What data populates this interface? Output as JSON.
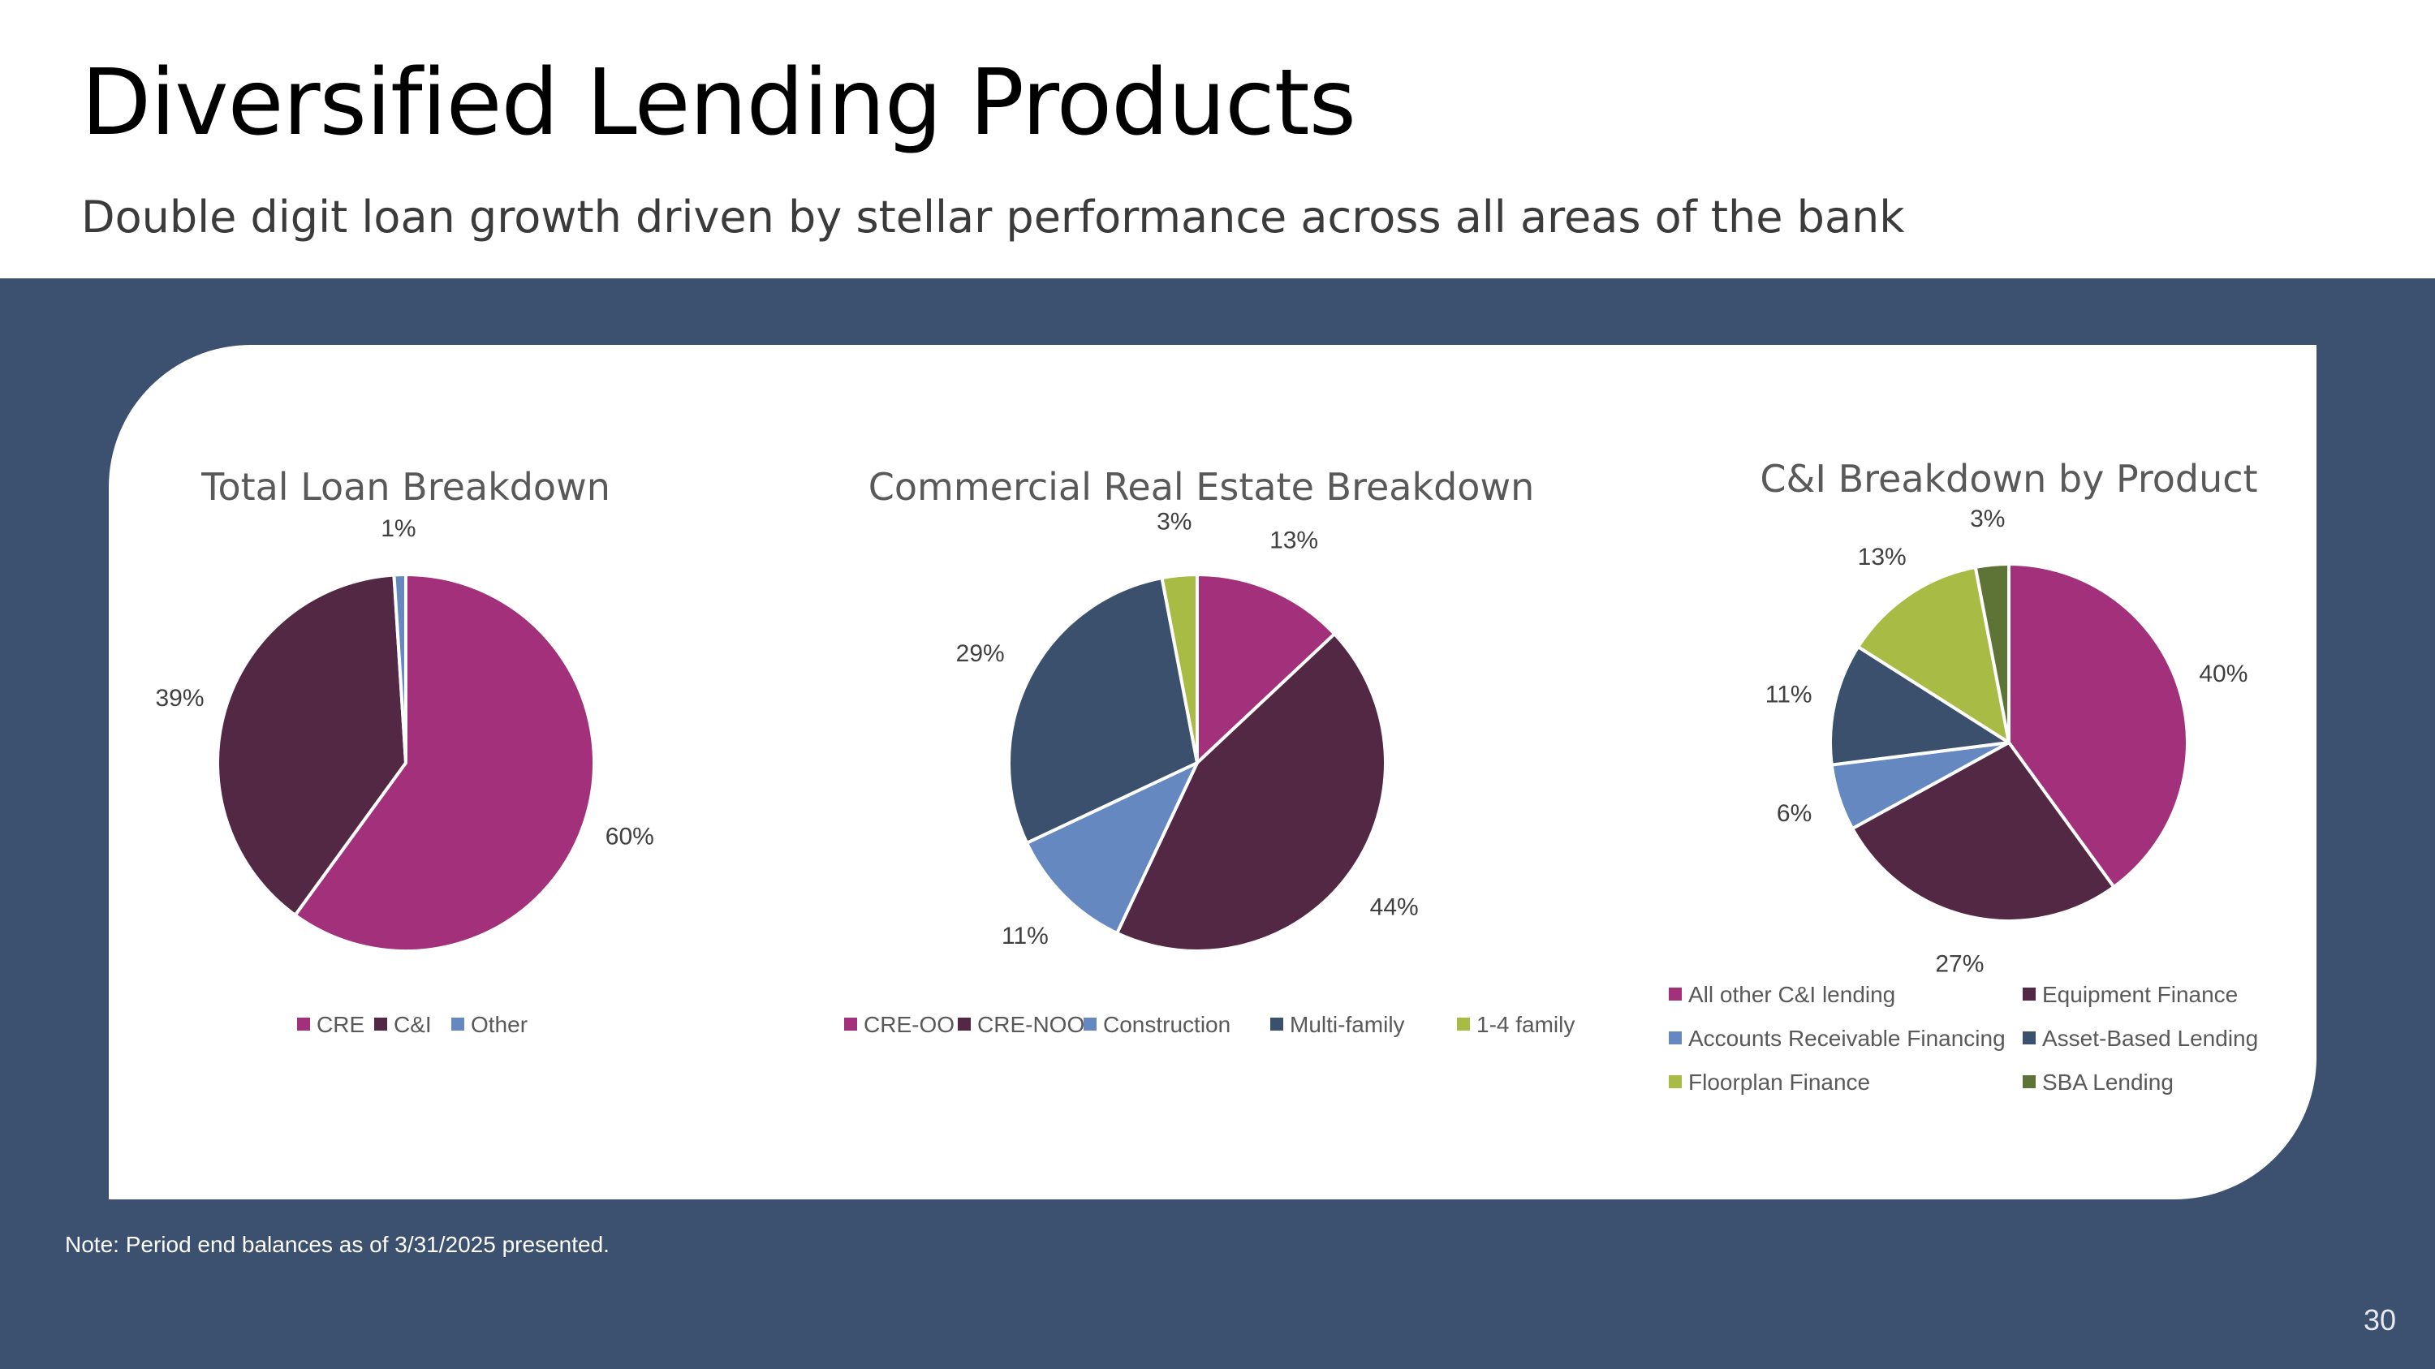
{
  "slide": {
    "title": "Diversified Lending Products",
    "subtitle": "Double digit loan growth driven by stellar performance across all areas of the bank",
    "note": "Note: Period end balances as of 3/31/2025 presented.",
    "page_number": "30"
  },
  "colors": {
    "band": "#3c506f",
    "magenta": "#a3307a",
    "plum": "#532844",
    "light_blue": "#6488bf",
    "navy": "#3b506d",
    "lime": "#a8bb45",
    "olive": "#5e7437"
  },
  "chart_data": [
    {
      "type": "pie",
      "title": "Total Loan Breakdown",
      "categories": [
        "CRE",
        "C&I",
        "Other"
      ],
      "values": [
        60,
        39,
        1
      ],
      "labels": [
        "60%",
        "39%",
        "1%"
      ],
      "colors": [
        "#a3307a",
        "#532844",
        "#6488bf"
      ],
      "legend": "bottom"
    },
    {
      "type": "pie",
      "title": "Commercial Real Estate Breakdown",
      "categories": [
        "CRE-OO",
        "CRE-NOO",
        "Construction",
        "Multi-family",
        "1-4 family"
      ],
      "values": [
        13,
        44,
        11,
        29,
        3
      ],
      "labels": [
        "13%",
        "44%",
        "11%",
        "29%",
        "3%"
      ],
      "colors": [
        "#a3307a",
        "#532844",
        "#6488bf",
        "#3b506d",
        "#a8bb45"
      ],
      "legend": "bottom"
    },
    {
      "type": "pie",
      "title": "C&I Breakdown by Product",
      "categories": [
        "All other C&I lending",
        "Equipment Finance",
        "Accounts Receivable Financing",
        "Asset-Based Lending",
        "Floorplan Finance",
        "SBA Lending"
      ],
      "values": [
        40,
        27,
        6,
        11,
        13,
        3
      ],
      "labels": [
        "40%",
        "27%",
        "6%",
        "11%",
        "13%",
        "3%"
      ],
      "colors": [
        "#a3307a",
        "#532844",
        "#6488bf",
        "#3b506d",
        "#a8bb45",
        "#5e7437"
      ],
      "legend": "bottom"
    }
  ]
}
